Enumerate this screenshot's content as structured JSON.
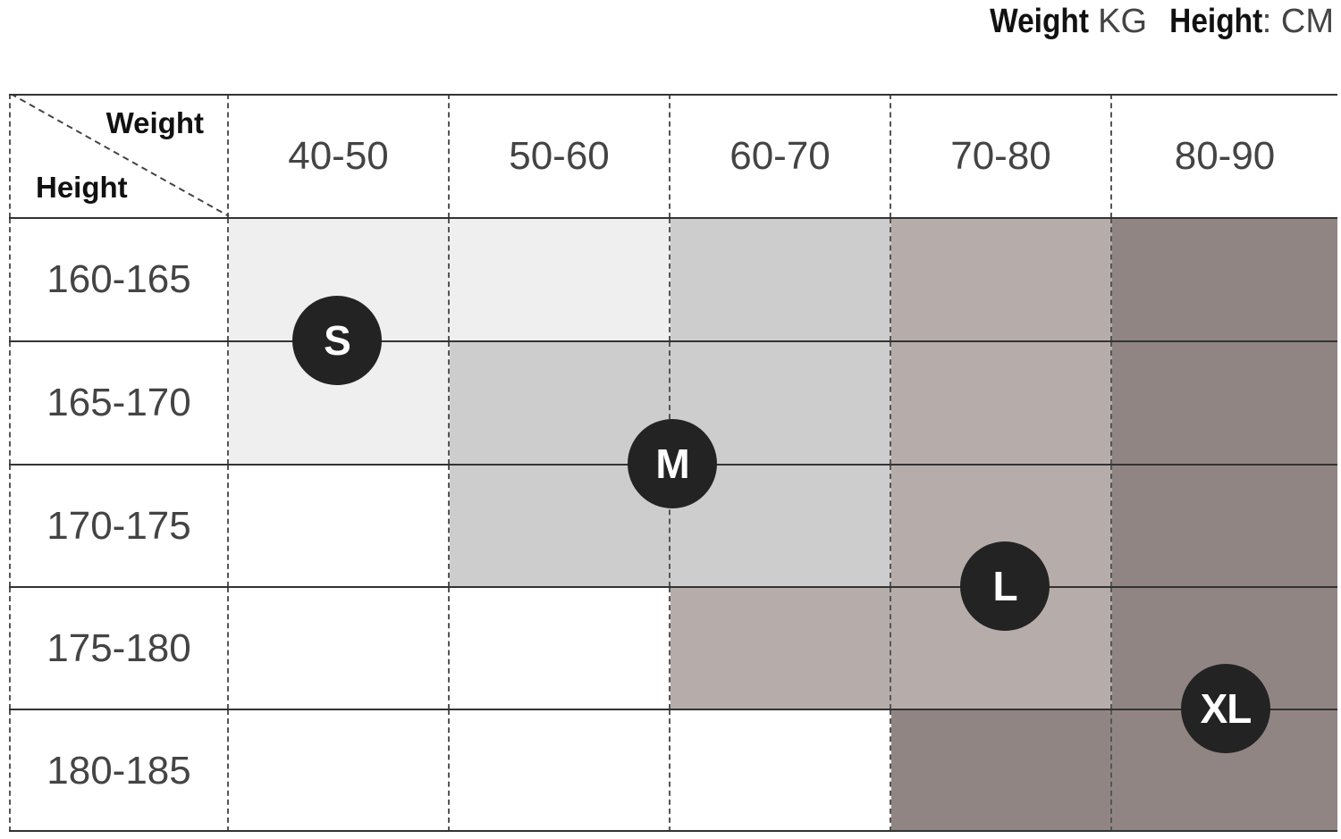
{
  "units": {
    "weight_label": "Weight",
    "weight_unit": "KG",
    "height_label": "Height",
    "height_unit": ": CM"
  },
  "table": {
    "corner_weight": "Weight",
    "corner_height": "Height",
    "weight_ranges": [
      "40-50",
      "50-60",
      "60-70",
      "70-80",
      "80-90"
    ],
    "height_ranges": [
      "160-165",
      "165-170",
      "170-175",
      "175-180",
      "180-185"
    ],
    "cell_sizes": [
      [
        "S",
        "S",
        "M",
        "L",
        "XL"
      ],
      [
        "S",
        "M",
        "M",
        "L",
        "XL"
      ],
      [
        "",
        "M",
        "M",
        "L",
        "XL"
      ],
      [
        "",
        "",
        "L",
        "L",
        "XL"
      ],
      [
        "",
        "",
        "",
        "XL",
        "XL"
      ]
    ],
    "size_colors": {
      "S": "#efefef",
      "M": "#cdcdcd",
      "L": "#b6adab",
      "XL": "#918584",
      "": "#ffffff"
    },
    "badges": [
      "S",
      "M",
      "L",
      "XL"
    ]
  }
}
